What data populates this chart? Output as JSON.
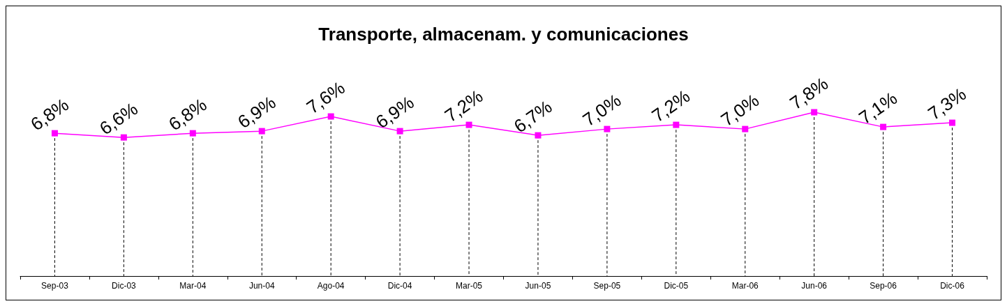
{
  "chart_data": {
    "type": "line",
    "title": "Transporte, almacenam. y comunicaciones",
    "categories": [
      "Sep-03",
      "Dic-03",
      "Mar-04",
      "Jun-04",
      "Ago-04",
      "Dic-04",
      "Mar-05",
      "Jun-05",
      "Sep-05",
      "Dic-05",
      "Mar-06",
      "Jun-06",
      "Sep-06",
      "Dic-06"
    ],
    "series": [
      {
        "color": "#ff00ff",
        "values": [
          6.8,
          6.6,
          6.8,
          6.9,
          7.6,
          6.9,
          7.2,
          6.7,
          7.0,
          7.2,
          7.0,
          7.8,
          7.1,
          7.3
        ],
        "value_labels": [
          "6,8%",
          "6,6%",
          "6,8%",
          "6,9%",
          "7,6%",
          "6,9%",
          "7,2%",
          "6,7%",
          "7,0%",
          "7,2%",
          "7,0%",
          "7,8%",
          "7,1%",
          "7,3%"
        ]
      }
    ],
    "tick_labels": "x",
    "marker": "square",
    "line_style": "solid",
    "grid": "x"
  }
}
